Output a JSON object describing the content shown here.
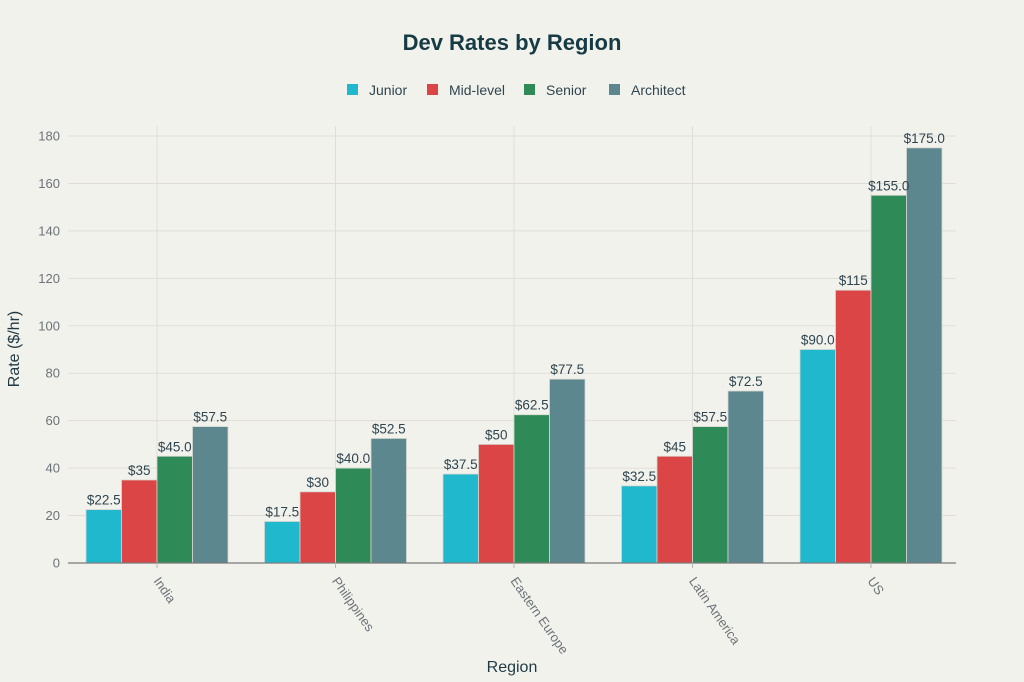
{
  "chart_data": {
    "type": "bar",
    "title": "Dev Rates by Region",
    "xlabel": "Region",
    "ylabel": "Rate ($/hr)",
    "ylim": [
      0,
      180
    ],
    "yticks": [
      0,
      20,
      40,
      60,
      80,
      100,
      120,
      140,
      160,
      180
    ],
    "grid": true,
    "legend_position": "top-center",
    "categories": [
      "India",
      "Philippines",
      "Eastern Europe",
      "Latin America",
      "US"
    ],
    "series": [
      {
        "name": "Junior",
        "color": "#1fb8cd",
        "values": [
          22.5,
          17.5,
          37.5,
          32.5,
          90.0
        ],
        "labels": [
          "$22.5",
          "$17.5",
          "$37.5",
          "$32.5",
          "$90.0"
        ]
      },
      {
        "name": "Mid-level",
        "color": "#db4545",
        "values": [
          35,
          30,
          50,
          45,
          115
        ],
        "labels": [
          "$35",
          "$30",
          "$50",
          "$45",
          "$115"
        ]
      },
      {
        "name": "Senior",
        "color": "#2e8b57",
        "values": [
          45.0,
          40.0,
          62.5,
          57.5,
          155.0
        ],
        "labels": [
          "$45.0",
          "$40.0",
          "$62.5",
          "$57.5",
          "$155.0"
        ]
      },
      {
        "name": "Architect",
        "color": "#5d878f",
        "values": [
          57.5,
          52.5,
          77.5,
          72.5,
          175.0
        ],
        "labels": [
          "$57.5",
          "$52.5",
          "$77.5",
          "$72.5",
          "$175.0"
        ]
      }
    ]
  }
}
